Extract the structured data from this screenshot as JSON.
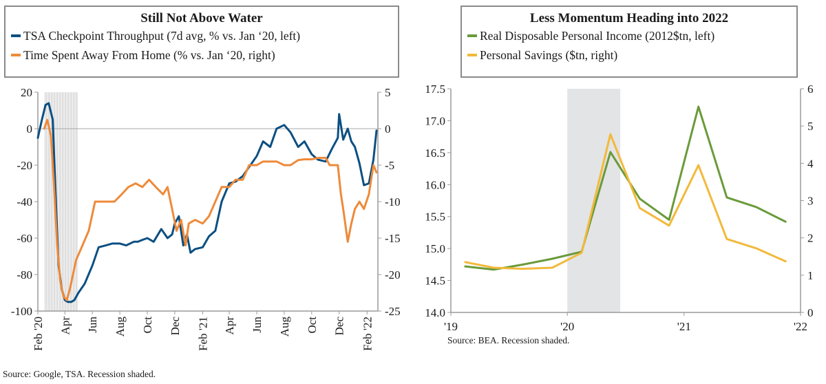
{
  "chart_data": [
    {
      "type": "line",
      "title": "Still Not Above Water",
      "legend_placement": "top",
      "recession_shading": [
        "2020-02-15",
        "2020-04-30"
      ],
      "x_ticks": [
        "Feb '20",
        "Apr",
        "Jun",
        "Aug",
        "Oct",
        "Dec",
        "Feb '21",
        "Apr",
        "Jun",
        "Aug",
        "Oct",
        "Dec",
        "Feb '22"
      ],
      "x_tick_dates": [
        "2020-02-01",
        "2020-04-01",
        "2020-06-01",
        "2020-08-01",
        "2020-10-01",
        "2020-12-01",
        "2021-02-01",
        "2021-04-01",
        "2021-06-01",
        "2021-08-01",
        "2021-10-01",
        "2021-12-01",
        "2022-02-01"
      ],
      "x_range": [
        "2020-02-01",
        "2022-02-25"
      ],
      "y_left": {
        "ticks": [
          "20",
          "0",
          "-20",
          "-40",
          "-60",
          "-80",
          "-100"
        ],
        "range": [
          -100,
          20
        ]
      },
      "y_right": {
        "ticks": [
          "5",
          "0",
          "-5",
          "-10",
          "-15",
          "-20",
          "-25"
        ],
        "range": [
          -25,
          5
        ]
      },
      "source": "Source: Google, TSA. Recession shaded.",
      "series": [
        {
          "name": "TSA Checkpoint Throughput (7d avg, % vs. Jan '20, left)",
          "label": "TSA Checkpoint Throughput (7d avg, % vs. Jan ‘20, left)",
          "axis": "left",
          "color": "#0b4f82",
          "x": [
            "2020-02-01",
            "2020-02-10",
            "2020-02-18",
            "2020-02-25",
            "2020-03-05",
            "2020-03-12",
            "2020-03-18",
            "2020-03-25",
            "2020-04-01",
            "2020-04-08",
            "2020-04-15",
            "2020-04-22",
            "2020-05-01",
            "2020-05-15",
            "2020-06-01",
            "2020-06-15",
            "2020-07-01",
            "2020-07-15",
            "2020-08-01",
            "2020-08-15",
            "2020-09-01",
            "2020-09-10",
            "2020-09-20",
            "2020-10-01",
            "2020-10-15",
            "2020-11-01",
            "2020-11-15",
            "2020-11-25",
            "2020-12-01",
            "2020-12-10",
            "2020-12-20",
            "2020-12-28",
            "2021-01-05",
            "2021-01-15",
            "2021-02-01",
            "2021-02-15",
            "2021-03-01",
            "2021-03-15",
            "2021-04-01",
            "2021-04-15",
            "2021-05-01",
            "2021-05-15",
            "2021-06-01",
            "2021-06-15",
            "2021-07-01",
            "2021-07-15",
            "2021-08-01",
            "2021-08-15",
            "2021-09-01",
            "2021-09-15",
            "2021-10-01",
            "2021-10-15",
            "2021-11-01",
            "2021-11-15",
            "2021-11-28",
            "2021-12-01",
            "2021-12-10",
            "2021-12-20",
            "2021-12-28",
            "2022-01-05",
            "2022-01-15",
            "2022-01-25",
            "2022-02-05",
            "2022-02-15",
            "2022-02-22"
          ],
          "y": [
            -5,
            5,
            13,
            14,
            5,
            -40,
            -75,
            -88,
            -94,
            -95,
            -95,
            -94,
            -90,
            -85,
            -75,
            -65,
            -64,
            -63,
            -63,
            -64,
            -62,
            -62,
            -61,
            -60,
            -62,
            -55,
            -60,
            -58,
            -52,
            -48,
            -64,
            -58,
            -68,
            -66,
            -65,
            -59,
            -56,
            -40,
            -30,
            -29,
            -26,
            -21,
            -15,
            -7,
            -10,
            0,
            2,
            -2,
            -10,
            -7,
            -14,
            -17,
            -18,
            -11,
            -5,
            8,
            -6,
            0,
            -7,
            -10,
            -19,
            -31,
            -30,
            -17,
            -1
          ]
        },
        {
          "name": "Time Spent Away From Home (% vs. Jan '20, right)",
          "label": "Time Spent Away From Home (% vs. Jan ‘20, right)",
          "axis": "right",
          "color": "#ee8a3a",
          "x": [
            "2020-02-15",
            "2020-02-22",
            "2020-03-01",
            "2020-03-08",
            "2020-03-15",
            "2020-03-22",
            "2020-03-29",
            "2020-04-05",
            "2020-04-12",
            "2020-04-19",
            "2020-04-26",
            "2020-05-03",
            "2020-05-10",
            "2020-05-24",
            "2020-06-07",
            "2020-06-21",
            "2020-07-05",
            "2020-07-20",
            "2020-08-05",
            "2020-08-20",
            "2020-09-05",
            "2020-09-20",
            "2020-10-05",
            "2020-10-20",
            "2020-11-05",
            "2020-11-15",
            "2020-11-25",
            "2020-12-05",
            "2020-12-15",
            "2020-12-25",
            "2021-01-01",
            "2021-01-15",
            "2021-02-01",
            "2021-02-15",
            "2021-03-01",
            "2021-03-15",
            "2021-04-01",
            "2021-04-15",
            "2021-05-01",
            "2021-05-15",
            "2021-06-01",
            "2021-06-15",
            "2021-07-01",
            "2021-07-15",
            "2021-08-01",
            "2021-08-15",
            "2021-09-01",
            "2021-09-15",
            "2021-10-01",
            "2021-10-15",
            "2021-11-01",
            "2021-11-10",
            "2021-11-20",
            "2021-11-28",
            "2021-12-05",
            "2021-12-10",
            "2021-12-20",
            "2021-12-28",
            "2022-01-05",
            "2022-01-15",
            "2022-01-25",
            "2022-02-05",
            "2022-02-15",
            "2022-02-22"
          ],
          "y": [
            0,
            1.2,
            -1,
            -8,
            -16,
            -21,
            -23,
            -23.5,
            -22,
            -20,
            -18,
            -17,
            -16,
            -14,
            -10,
            -10,
            -10,
            -10,
            -9,
            -8,
            -7.5,
            -8,
            -7,
            -8,
            -9,
            -8,
            -11,
            -14,
            -12.5,
            -16,
            -13,
            -12.5,
            -13,
            -12,
            -10,
            -8,
            -8,
            -7,
            -7,
            -5,
            -5,
            -4.5,
            -4.5,
            -4.5,
            -5,
            -5,
            -4.3,
            -4.2,
            -4.2,
            -4,
            -4,
            -5,
            -5,
            -5,
            -9,
            -11,
            -15.5,
            -13,
            -11,
            -10,
            -11,
            -9,
            -5,
            -6
          ]
        }
      ]
    },
    {
      "type": "line",
      "title": "Less Momentum Heading into 2022",
      "legend_placement": "top",
      "recession_shading": [
        "2020-01-01",
        "2020-06-15"
      ],
      "x_ticks": [
        "'19",
        "'20",
        "'21",
        "'22"
      ],
      "x_tick_dates": [
        "2019-01-01",
        "2020-01-01",
        "2021-01-01",
        "2022-01-01"
      ],
      "x_range": [
        "2019-01-01",
        "2022-01-01"
      ],
      "y_left": {
        "ticks": [
          "17.5",
          "17.0",
          "16.5",
          "16.0",
          "15.5",
          "15.0",
          "14.5",
          "14.0"
        ],
        "range": [
          14.0,
          17.5
        ]
      },
      "y_right": {
        "ticks": [
          "6",
          "5",
          "4",
          "3",
          "2",
          "1",
          "0"
        ],
        "range": [
          0,
          6
        ]
      },
      "source": "Source: BEA. Recession shaded.",
      "series": [
        {
          "name": "Real Disposable Personal Income (2012$tn, left)",
          "label": "Real Disposable Personal Income (2012$tn, left)",
          "axis": "left",
          "color": "#6a9a3a",
          "x": [
            "2019-02-15",
            "2019-05-15",
            "2019-08-15",
            "2019-11-15",
            "2020-02-15",
            "2020-05-15",
            "2020-08-15",
            "2020-11-15",
            "2021-02-15",
            "2021-05-15",
            "2021-08-15",
            "2021-11-15"
          ],
          "y": [
            14.72,
            14.67,
            14.75,
            14.84,
            14.95,
            16.51,
            15.78,
            15.45,
            17.22,
            15.8,
            15.65,
            15.42
          ]
        },
        {
          "name": "Personal Savings ($tn, right)",
          "label": "Personal Savings ($tn, right)",
          "axis": "right",
          "color": "#f2b93b",
          "x": [
            "2019-02-15",
            "2019-05-15",
            "2019-08-15",
            "2019-11-15",
            "2020-02-15",
            "2020-05-15",
            "2020-08-15",
            "2020-11-15",
            "2021-02-15",
            "2021-05-15",
            "2021-08-15",
            "2021-11-15"
          ],
          "y": [
            1.35,
            1.2,
            1.17,
            1.2,
            1.6,
            4.78,
            2.8,
            2.33,
            3.95,
            1.97,
            1.72,
            1.37
          ]
        }
      ]
    }
  ]
}
